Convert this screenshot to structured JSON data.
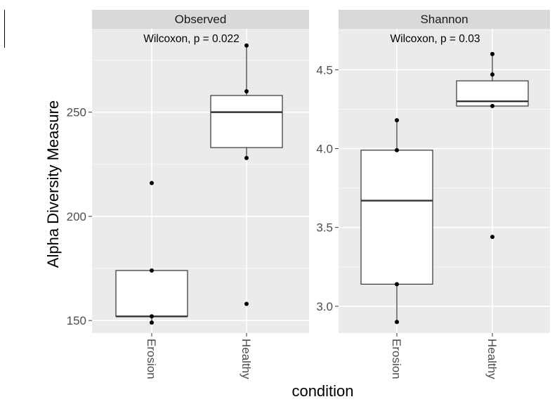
{
  "colors": {
    "panel_bg": "#ebebeb",
    "strip_bg": "#d9d9d9",
    "grid": "#ffffff",
    "box_fill": "#ffffff",
    "box_line": "#333333",
    "point": "#000000",
    "tick_text": "#4d4d4d"
  },
  "chart_data": {
    "type": "box",
    "facet_by": "measure",
    "xlabel": "condition",
    "ylabel": "Alpha Diversity Measure",
    "categories": [
      "Erosion",
      "Healthy"
    ],
    "grid": true,
    "panels": [
      {
        "strip": "Observed",
        "annotation": "Wilcoxon, p = 0.022",
        "ylim": [
          144,
          290
        ],
        "yticks": [
          150,
          200,
          250
        ],
        "boxes": [
          {
            "category": "Erosion",
            "min": 149,
            "q1": 152,
            "median": 152,
            "q3": 174,
            "max": 174
          },
          {
            "category": "Healthy",
            "min": 228,
            "q1": 233,
            "median": 250,
            "q3": 258,
            "max": 282
          }
        ],
        "points": [
          {
            "category": "Erosion",
            "y": 216
          },
          {
            "category": "Erosion",
            "y": 174
          },
          {
            "category": "Erosion",
            "y": 152
          },
          {
            "category": "Erosion",
            "y": 149
          },
          {
            "category": "Healthy",
            "y": 282
          },
          {
            "category": "Healthy",
            "y": 260
          },
          {
            "category": "Healthy",
            "y": 228
          },
          {
            "category": "Healthy",
            "y": 158
          }
        ]
      },
      {
        "strip": "Shannon",
        "annotation": "Wilcoxon, p = 0.03",
        "ylim": [
          2.83,
          4.76
        ],
        "yticks": [
          3.0,
          3.5,
          4.0,
          4.5
        ],
        "boxes": [
          {
            "category": "Erosion",
            "min": 2.9,
            "q1": 3.14,
            "median": 3.67,
            "q3": 3.99,
            "max": 4.18
          },
          {
            "category": "Healthy",
            "min": 4.27,
            "q1": 4.27,
            "median": 4.3,
            "q3": 4.43,
            "max": 4.6
          }
        ],
        "points": [
          {
            "category": "Erosion",
            "y": 4.18
          },
          {
            "category": "Erosion",
            "y": 3.99
          },
          {
            "category": "Erosion",
            "y": 3.14
          },
          {
            "category": "Erosion",
            "y": 2.9
          },
          {
            "category": "Healthy",
            "y": 4.6
          },
          {
            "category": "Healthy",
            "y": 4.47
          },
          {
            "category": "Healthy",
            "y": 4.27
          },
          {
            "category": "Healthy",
            "y": 3.44
          }
        ]
      }
    ]
  }
}
